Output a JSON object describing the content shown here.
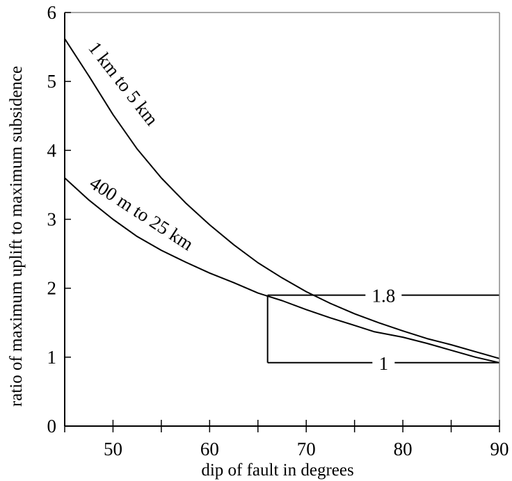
{
  "chart_data": {
    "type": "line",
    "title": "",
    "xlabel": "dip of fault in degrees",
    "ylabel": "ratio of maximum uplift to maximum subsidence",
    "xlim": [
      45,
      90
    ],
    "ylim": [
      0,
      6
    ],
    "xticks": [
      50,
      60,
      70,
      80,
      90
    ],
    "yticks": [
      0,
      1,
      2,
      3,
      4,
      5,
      6
    ],
    "grid": false,
    "series": [
      {
        "name": "1 km to 5 km",
        "color": "#000000",
        "x": [
          45,
          47.5,
          50,
          52.5,
          55,
          57.5,
          60,
          62.5,
          65,
          67.5,
          70,
          72.5,
          75,
          77.5,
          80,
          82.5,
          85,
          87.5,
          90
        ],
        "y": [
          5.62,
          5.08,
          4.52,
          4.02,
          3.6,
          3.24,
          2.92,
          2.63,
          2.37,
          2.15,
          1.95,
          1.78,
          1.63,
          1.5,
          1.38,
          1.27,
          1.18,
          1.08,
          0.98
        ]
      },
      {
        "name": "400 m to 25 km",
        "color": "#000000",
        "x": [
          45,
          47.5,
          50,
          52.5,
          55,
          57.5,
          60,
          62.5,
          65,
          67.5,
          70,
          72.5,
          75,
          77,
          80,
          82.5,
          85,
          87.5,
          90
        ],
        "y": [
          3.6,
          3.28,
          3.0,
          2.75,
          2.55,
          2.38,
          2.22,
          2.08,
          1.93,
          1.82,
          1.69,
          1.57,
          1.46,
          1.37,
          1.29,
          1.2,
          1.1,
          1.0,
          0.92
        ]
      }
    ],
    "reference_lines": [
      {
        "label": "1.8",
        "y": 1.9,
        "x_start": 66,
        "x_end": 90
      },
      {
        "label": "1",
        "y": 0.92,
        "x_start": 66,
        "x_end": 90
      }
    ],
    "reference_vertical": {
      "x": 66,
      "y_start": 0.92,
      "y_end": 1.9
    }
  }
}
